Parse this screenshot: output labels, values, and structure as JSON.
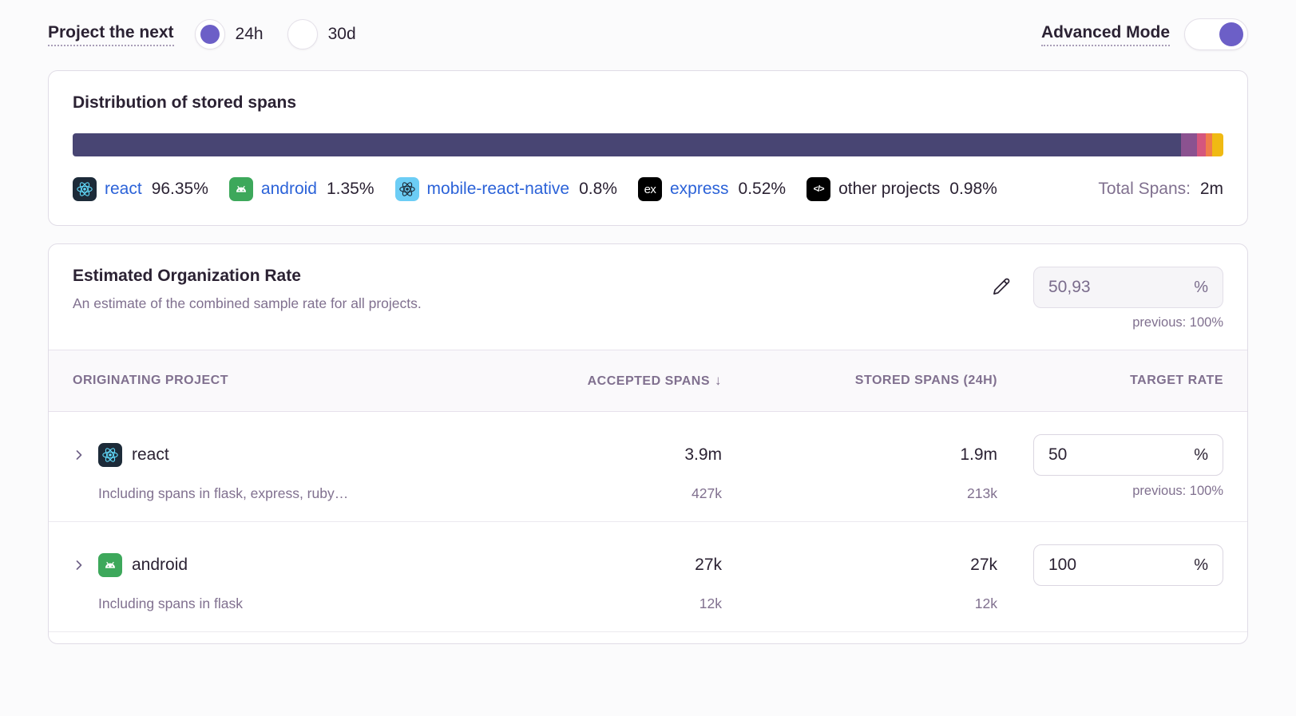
{
  "topbar": {
    "projection_label": "Project the next",
    "period_options": [
      {
        "label": "24h",
        "selected": true
      },
      {
        "label": "30d",
        "selected": false
      }
    ],
    "advanced_mode_label": "Advanced Mode",
    "advanced_mode_on": true
  },
  "distribution": {
    "title": "Distribution of stored spans",
    "total_label": "Total Spans:",
    "total_value": "2m",
    "segments": [
      {
        "name": "react",
        "pct_label": "96.35%",
        "value": 96.35,
        "color": "#484573",
        "icon": "react-platform-icon",
        "link": true
      },
      {
        "name": "android",
        "pct_label": "1.35%",
        "value": 1.35,
        "color": "#8B5290",
        "icon": "android-platform-icon",
        "link": true
      },
      {
        "name": "mobile-react-native",
        "pct_label": "0.8%",
        "value": 0.8,
        "color": "#D5567D",
        "icon": "react-native-platform-icon",
        "link": true
      },
      {
        "name": "express",
        "pct_label": "0.52%",
        "value": 0.52,
        "color": "#F07D4B",
        "icon": "express-platform-icon",
        "link": true
      },
      {
        "name": "other projects",
        "pct_label": "0.98%",
        "value": 0.98,
        "color": "#F0BA13",
        "icon": "code-icon",
        "link": false
      }
    ]
  },
  "org_rate": {
    "title": "Estimated Organization Rate",
    "subtitle": "An estimate of the combined sample rate for all projects.",
    "input_value": "50,93",
    "input_suffix": "%",
    "input_disabled": true,
    "previous": "previous: 100%"
  },
  "table": {
    "headers": {
      "project": "Originating Project",
      "accepted": "Accepted Spans",
      "stored": "Stored Spans (24h)",
      "rate": "Target Rate"
    },
    "sort_indicator": "↓",
    "rows": [
      {
        "project": "react",
        "icon": "react-platform-icon",
        "description": "Including spans in flask, express, ruby…",
        "accepted": "3.9m",
        "accepted_sub": "427k",
        "stored": "1.9m",
        "stored_sub": "213k",
        "rate": "50",
        "rate_suffix": "%",
        "previous": "previous: 100%"
      },
      {
        "project": "android",
        "icon": "android-platform-icon",
        "description": "Including spans in flask",
        "accepted": "27k",
        "accepted_sub": "12k",
        "stored": "27k",
        "stored_sub": "12k",
        "rate": "100",
        "rate_suffix": "%",
        "previous": ""
      }
    ]
  },
  "colors": {
    "accent": "#6C5FC7",
    "link": "#2B62D8",
    "heading": "#2B2233",
    "muted": "#80708F",
    "card_border": "#E0DCE6",
    "table_header_bg": "#FAF9FB"
  }
}
